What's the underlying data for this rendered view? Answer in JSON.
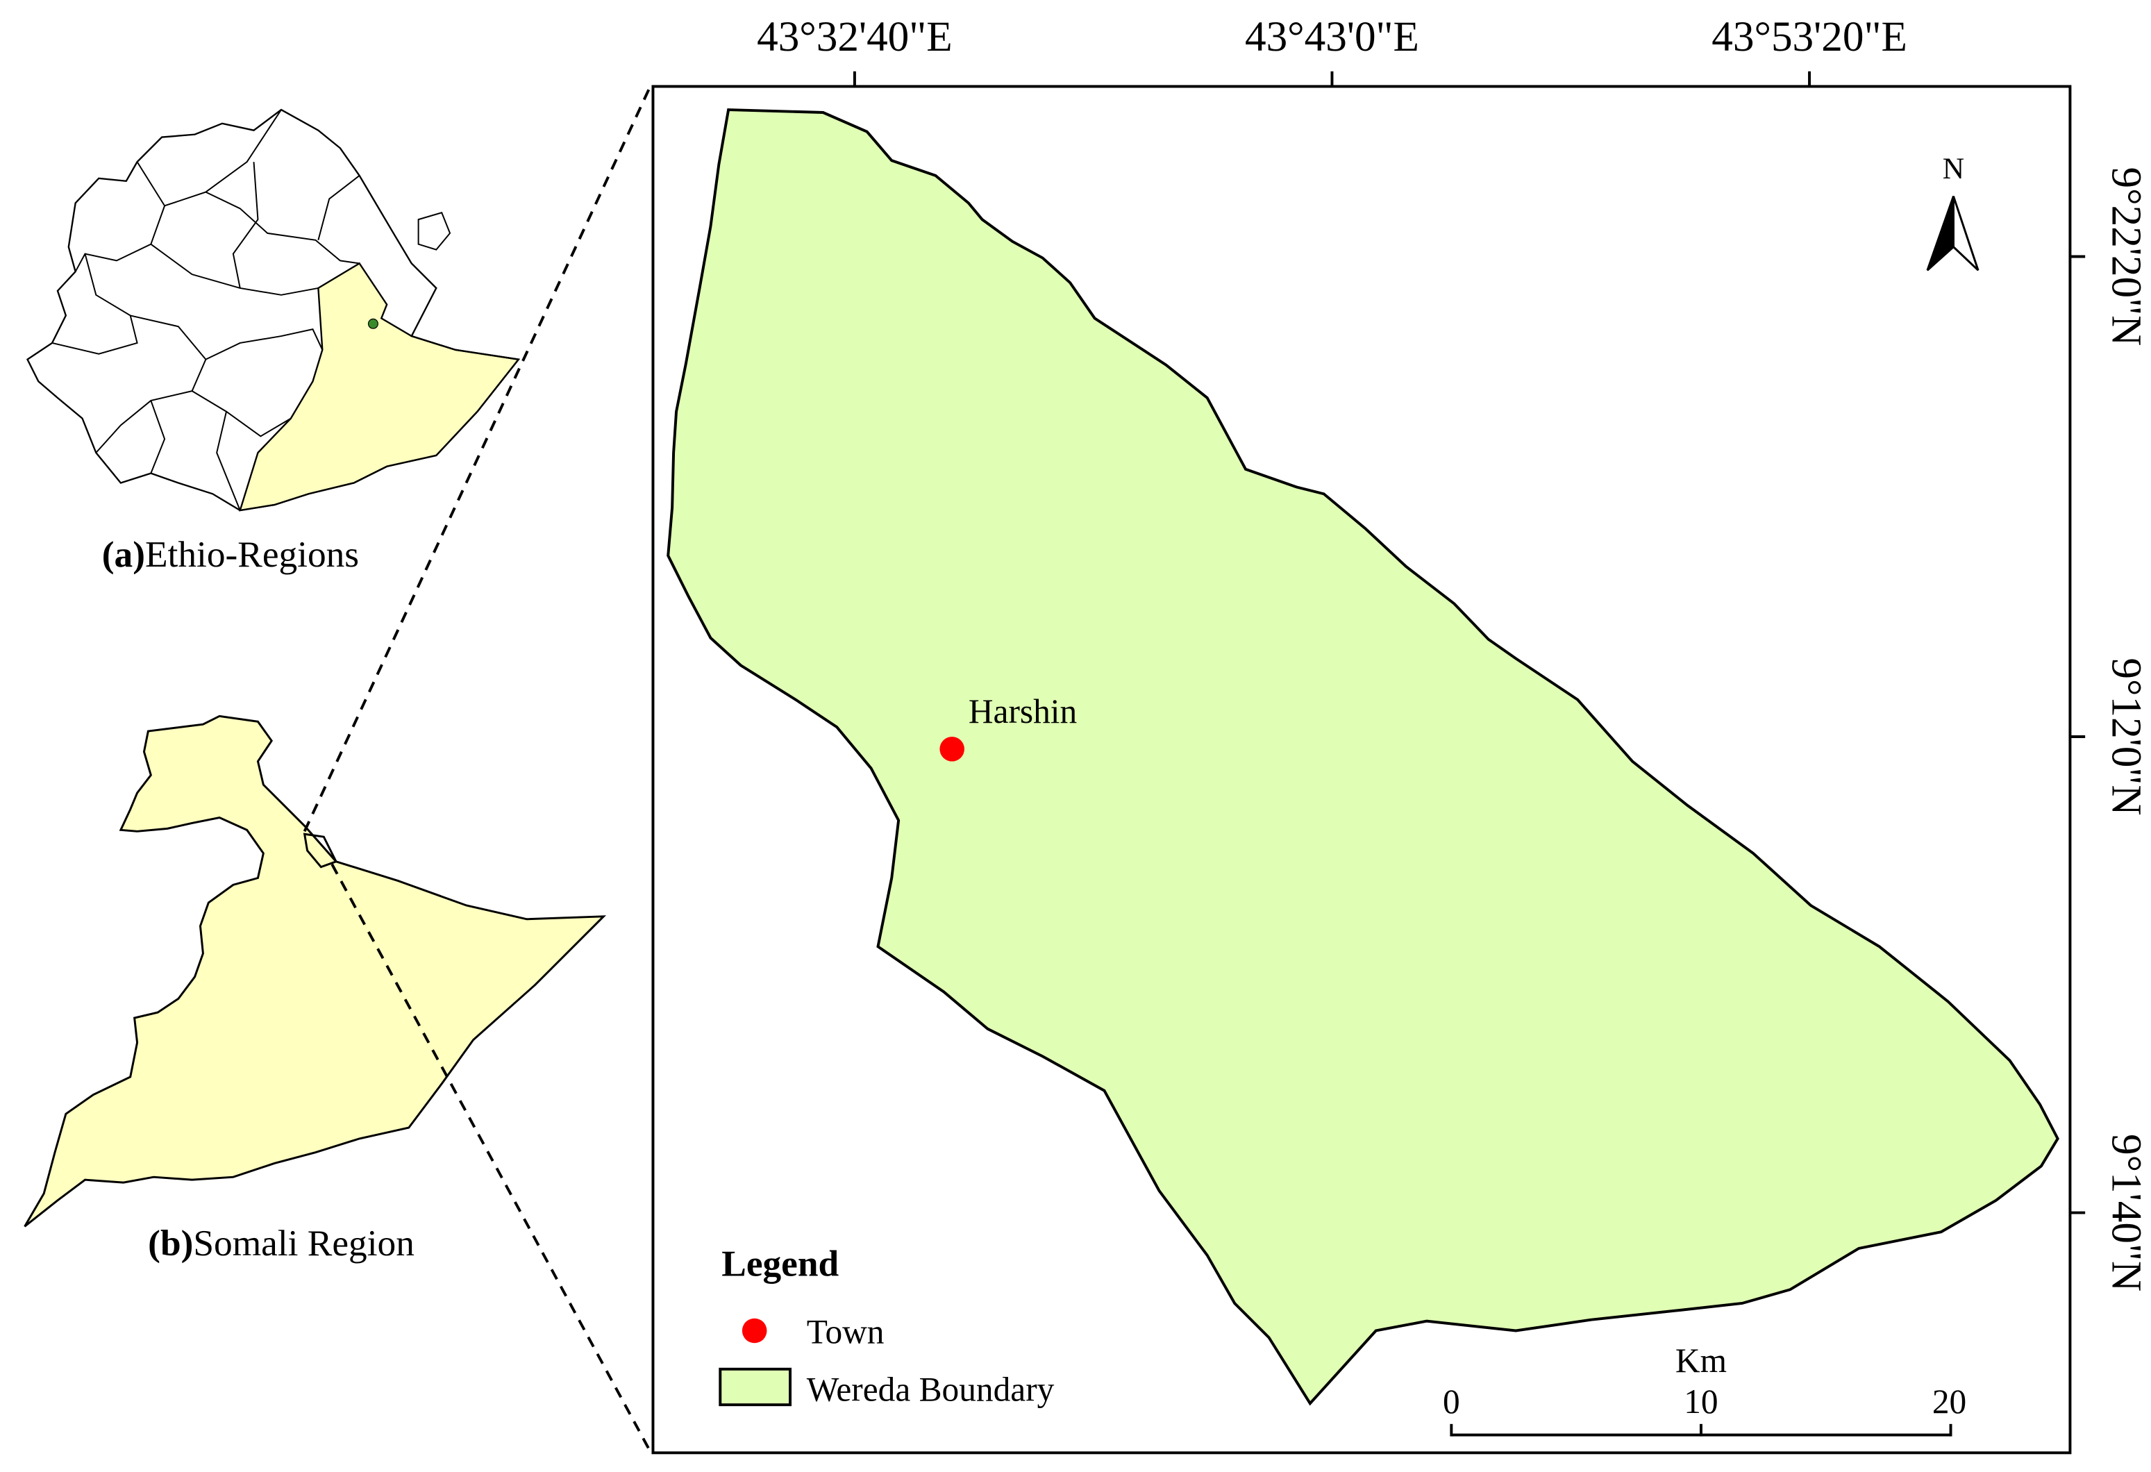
{
  "insets": {
    "a": {
      "prefix": "(a)",
      "name": "Ethio-Regions"
    },
    "b": {
      "prefix": "(b)",
      "name": "Somali Region"
    }
  },
  "main_map": {
    "lon_labels": [
      "43°32'40\"E",
      "43°43'0\"E",
      "43°53'20\"E"
    ],
    "lat_labels": [
      "9°22'20\"N",
      "9°12'0\"N",
      "9°1'40\"N"
    ],
    "north_arrow": {
      "label": "N",
      "icon": "north-arrow-icon"
    },
    "town": {
      "name": "Harshin",
      "color": "#ff0000"
    }
  },
  "legend": {
    "title": "Legend",
    "items": [
      {
        "label": "Town",
        "symbol": "red-dot-icon",
        "color": "#ff0000"
      },
      {
        "label": "Wereda Boundary",
        "symbol": "green-box-icon",
        "color": "#e0ffb4"
      }
    ]
  },
  "scale_bar": {
    "unit": "Km",
    "ticks": [
      "0",
      "10",
      "20"
    ]
  },
  "colors": {
    "wereda_fill": "#e0ffb4",
    "somali_fill": "#ffffc0",
    "town": "#ff0000",
    "outline": "#000000"
  }
}
